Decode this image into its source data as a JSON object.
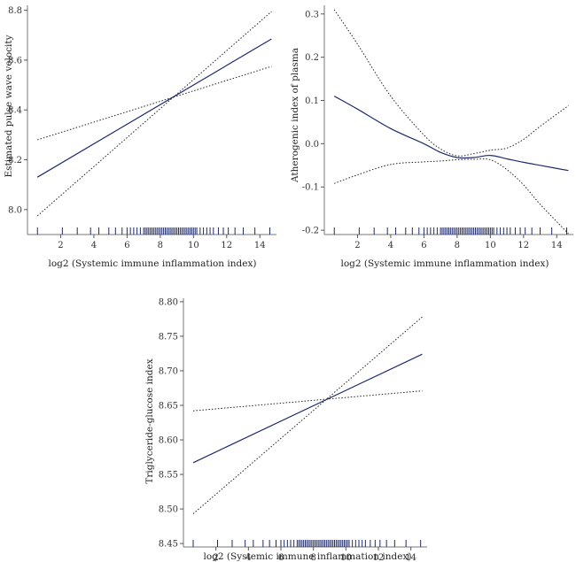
{
  "colors": {
    "fit": "#1f2a6b",
    "ci": "#222222",
    "rug": "#1f2a6b",
    "axis": "#777777"
  },
  "chart_data": [
    {
      "type": "line",
      "id": "pwv",
      "title": "",
      "xlabel": "log2 (Systemic immune inflammation index)",
      "ylabel": "Estimated pulse wave velocity",
      "xlim": [
        0,
        15
      ],
      "ylim": [
        7.9,
        8.82
      ],
      "xticks": [
        2,
        4,
        6,
        8,
        10,
        12,
        14
      ],
      "yticks": [
        8.0,
        8.2,
        8.4,
        8.6,
        8.8
      ],
      "ytick_labels": [
        "8.0",
        "8.2",
        "8.4",
        "8.6",
        "8.8"
      ],
      "rug_y": 7.895,
      "x": [
        0.6,
        14.7
      ],
      "series": [
        {
          "name": "fit",
          "x": [
            0.6,
            14.7
          ],
          "values": [
            8.13,
            8.685
          ]
        },
        {
          "name": "lower",
          "x": [
            0.6,
            14.7
          ],
          "values": [
            7.975,
            8.795
          ]
        },
        {
          "name": "upper",
          "x": [
            0.6,
            14.7
          ],
          "values": [
            8.28,
            8.575
          ]
        }
      ]
    },
    {
      "type": "line",
      "id": "aip",
      "title": "",
      "xlabel": "log2 (Systemic immune inflammation index)",
      "ylabel": "Atherogenic index of plasma",
      "xlim": [
        0,
        15
      ],
      "ylim": [
        -0.21,
        0.32
      ],
      "xticks": [
        2,
        4,
        6,
        8,
        10,
        12,
        14
      ],
      "yticks": [
        -0.2,
        -0.1,
        0.0,
        0.1,
        0.2,
        0.3
      ],
      "ytick_labels": [
        "-0.2",
        "-0.1",
        "0.0",
        "0.1",
        "0.2",
        "0.3"
      ],
      "rug_y": -0.205,
      "series": [
        {
          "name": "fit",
          "x": [
            0.6,
            2,
            4,
            6,
            7,
            8,
            9,
            10,
            11,
            12,
            13,
            14.7
          ],
          "values": [
            0.11,
            0.08,
            0.035,
            0.0,
            -0.02,
            -0.032,
            -0.032,
            -0.027,
            -0.035,
            -0.043,
            -0.05,
            -0.062
          ]
        },
        {
          "name": "upper",
          "x": [
            0.6,
            2,
            4,
            6,
            7,
            8,
            9,
            10,
            11,
            12,
            13,
            14.7
          ],
          "values": [
            0.31,
            0.23,
            0.11,
            0.02,
            -0.012,
            -0.028,
            -0.023,
            -0.015,
            -0.01,
            0.01,
            0.04,
            0.088
          ]
        },
        {
          "name": "lower",
          "x": [
            0.6,
            2,
            4,
            6,
            7,
            8,
            9,
            10,
            11,
            12,
            13,
            14.7
          ],
          "values": [
            -0.092,
            -0.072,
            -0.048,
            -0.042,
            -0.04,
            -0.037,
            -0.036,
            -0.037,
            -0.06,
            -0.095,
            -0.14,
            -0.208
          ]
        }
      ]
    },
    {
      "type": "line",
      "id": "tyg",
      "title": "",
      "xlabel": "log2 (Systemic immune inflammation index)",
      "ylabel": "Triglyceride-glucose index",
      "xlim": [
        0,
        15
      ],
      "ylim": [
        8.445,
        8.805
      ],
      "xticks": [
        2,
        4,
        6,
        8,
        10,
        12,
        14
      ],
      "yticks": [
        8.45,
        8.5,
        8.55,
        8.6,
        8.65,
        8.7,
        8.75,
        8.8
      ],
      "ytick_labels": [
        "8.45",
        "8.50",
        "8.55",
        "8.60",
        "8.65",
        "8.70",
        "8.75",
        "8.80"
      ],
      "rug_y": 8.447,
      "series": [
        {
          "name": "fit",
          "x": [
            0.6,
            14.7
          ],
          "values": [
            8.567,
            8.724
          ]
        },
        {
          "name": "lower",
          "x": [
            0.6,
            14.7
          ],
          "values": [
            8.493,
            8.778
          ]
        },
        {
          "name": "upper",
          "x": [
            0.6,
            14.7
          ],
          "values": [
            8.642,
            8.671
          ]
        }
      ]
    }
  ],
  "rug_x": [
    0.6,
    2.1,
    3.0,
    3.8,
    4.3,
    4.9,
    5.3,
    5.7,
    6.0,
    6.2,
    6.4,
    6.6,
    6.8,
    7.0,
    7.1,
    7.2,
    7.3,
    7.4,
    7.5,
    7.6,
    7.7,
    7.8,
    7.9,
    8.0,
    8.1,
    8.2,
    8.3,
    8.4,
    8.5,
    8.6,
    8.7,
    8.8,
    8.9,
    9.0,
    9.1,
    9.2,
    9.3,
    9.4,
    9.5,
    9.6,
    9.7,
    9.8,
    9.9,
    10.0,
    10.1,
    10.2,
    10.4,
    10.6,
    10.8,
    11.0,
    11.2,
    11.5,
    11.8,
    12.1,
    12.5,
    13.0,
    13.7,
    14.6
  ]
}
